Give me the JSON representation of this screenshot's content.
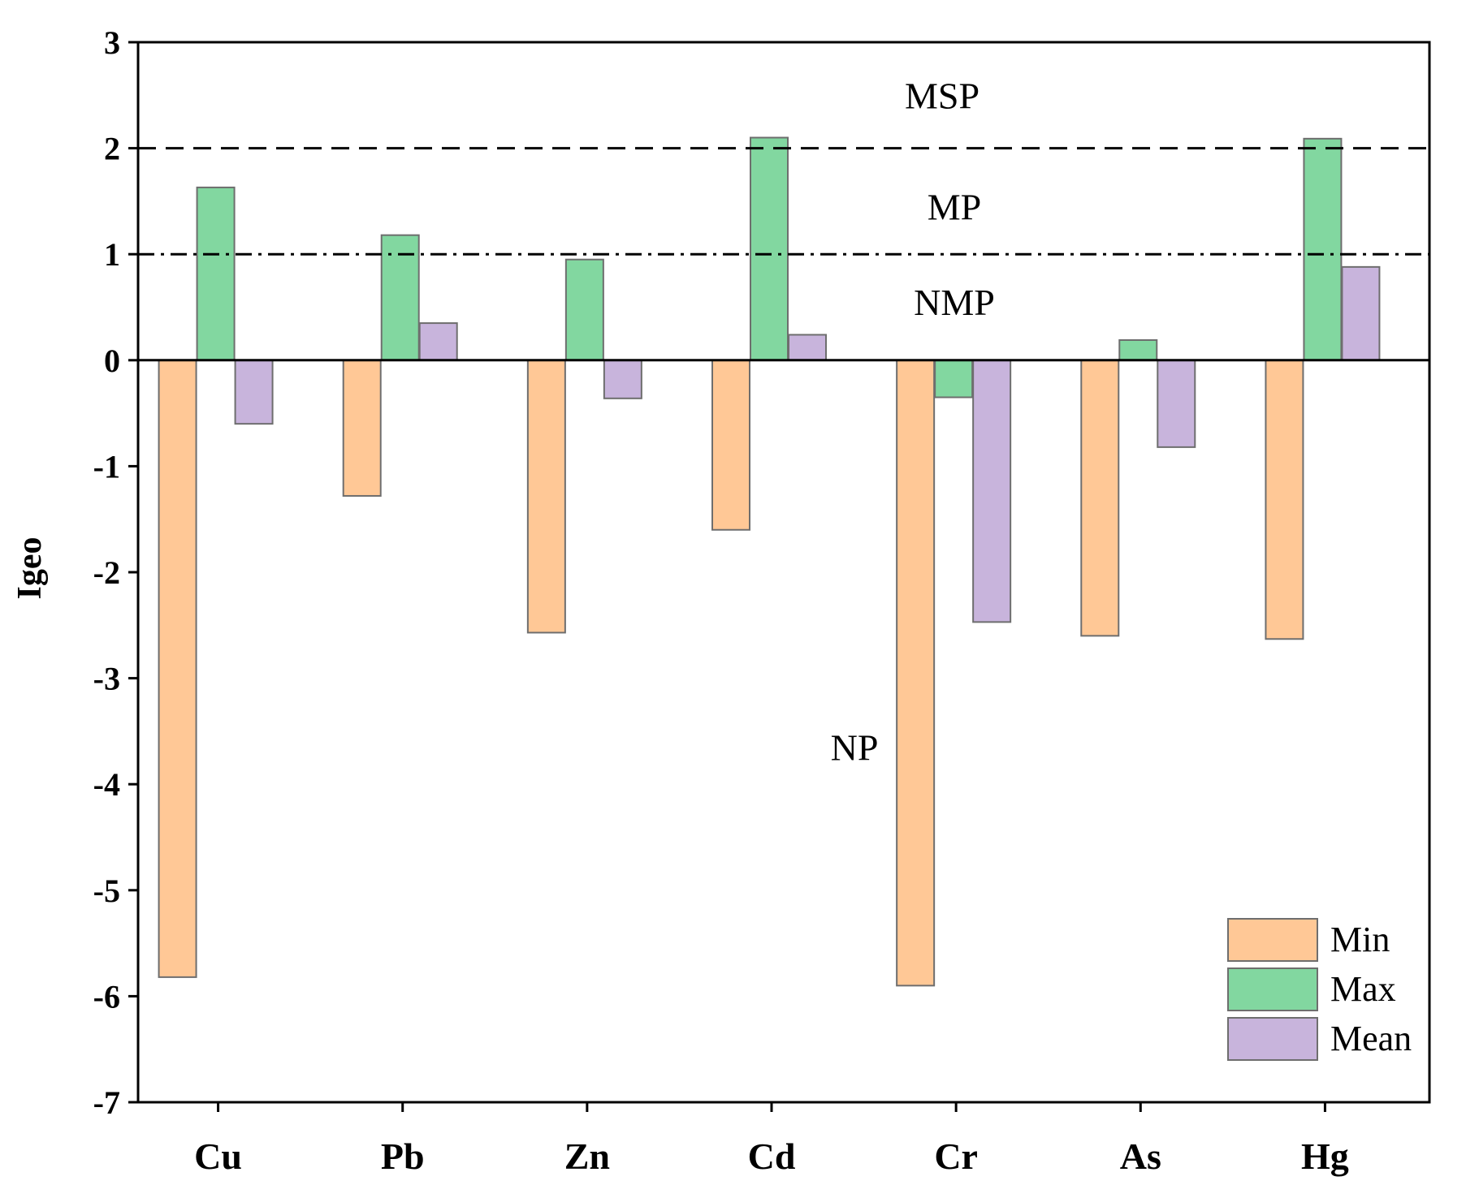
{
  "chart_data": {
    "type": "bar",
    "title": "",
    "xlabel": "",
    "ylabel": "Igeo",
    "ylim": [
      -7,
      3
    ],
    "yticks": [
      3,
      2,
      1,
      0,
      -1,
      -2,
      -3,
      -4,
      -5,
      -6,
      -7
    ],
    "ytick_labels": [
      "3",
      "2",
      "1",
      "0",
      "-1",
      "-2",
      "-3",
      "-4",
      "-5",
      "-6",
      "-7"
    ],
    "categories": [
      "Cu",
      "Pb",
      "Zn",
      "Cd",
      "Cr",
      "As",
      "Hg"
    ],
    "series": [
      {
        "name": "Min",
        "color": "#ffc896",
        "values": [
          -5.82,
          -1.28,
          -2.57,
          -1.6,
          -5.9,
          -2.6,
          -2.63
        ]
      },
      {
        "name": "Max",
        "color": "#82d7a0",
        "values": [
          1.63,
          1.18,
          0.95,
          2.1,
          -0.35,
          0.19,
          2.09
        ]
      },
      {
        "name": "Mean",
        "color": "#c8b4dc",
        "values": [
          -0.6,
          0.35,
          -0.36,
          0.24,
          -2.47,
          -0.82,
          0.88
        ]
      }
    ],
    "reference_lines": [
      {
        "y": 2,
        "style": "dashed"
      },
      {
        "y": 1,
        "style": "dash-dot"
      },
      {
        "y": 0,
        "style": "solid"
      }
    ],
    "annotations": [
      {
        "text": "MSP",
        "x_category": "Cd",
        "y": 2.5
      },
      {
        "text": "MP",
        "x_category": "Cd",
        "y": 1.45
      },
      {
        "text": "NMP",
        "x_category": "Cd",
        "y": 0.55
      },
      {
        "text": "NP",
        "x_category": "Cd",
        "y": -3.65
      }
    ],
    "legend_position": "bottom-right",
    "grid": false
  }
}
